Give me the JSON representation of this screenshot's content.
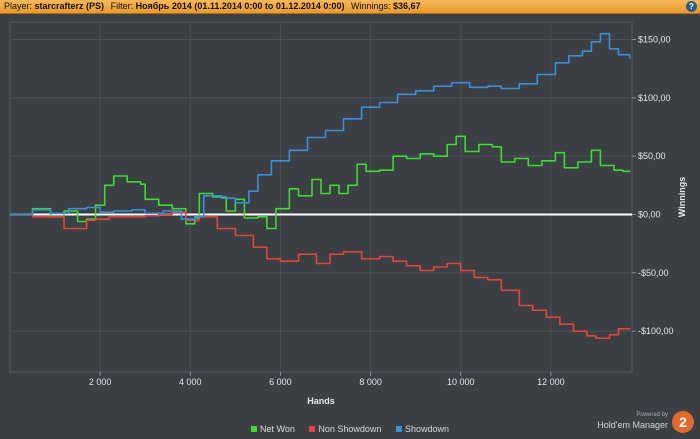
{
  "header": {
    "player_label": "Player:",
    "player": "starcrafterz (PS)",
    "filter_label": "Filter:",
    "filter": "Ноябрь 2014 (01.11.2014 0:00 to 01.12.2014 0:00)",
    "winnings_label": "Winnings:",
    "winnings": "$36,67",
    "help_icon": "?"
  },
  "brand": {
    "powered": "Powered by",
    "name": "Hold'em Manager",
    "logo": "2"
  },
  "colors": {
    "net_won": "#3ddc2e",
    "non_showdown": "#e0453e",
    "showdown": "#3a8fdc",
    "zero_line": "#ffffff",
    "plot_bg": "#3c3f44"
  },
  "chart_data": {
    "type": "line",
    "xlabel": "Hands",
    "ylabel": "Winnings",
    "xlim": [
      0,
      13800
    ],
    "ylim": [
      -135,
      165
    ],
    "x_ticks": [
      2000,
      4000,
      6000,
      8000,
      10000,
      12000
    ],
    "x_tick_labels": [
      "2 000",
      "4 000",
      "6 000",
      "8 000",
      "10 000",
      "12 000"
    ],
    "y_ticks": [
      150,
      100,
      50,
      0,
      -50,
      -100
    ],
    "y_tick_labels": [
      "$150,00",
      "$100,00",
      "$50,00",
      "$0,00",
      "-$50,00",
      "-$100,00"
    ],
    "grid": true,
    "legend_position": "bottom",
    "series": [
      {
        "name": "Net Won",
        "color": "#3ddc2e",
        "points": [
          [
            0,
            0
          ],
          [
            500,
            5
          ],
          [
            900,
            -2
          ],
          [
            1200,
            3
          ],
          [
            1500,
            -6
          ],
          [
            1700,
            -4
          ],
          [
            1900,
            8
          ],
          [
            2100,
            25
          ],
          [
            2300,
            33
          ],
          [
            2600,
            28
          ],
          [
            2900,
            26
          ],
          [
            3000,
            13
          ],
          [
            3300,
            8
          ],
          [
            3600,
            5
          ],
          [
            3900,
            -8
          ],
          [
            4100,
            -3
          ],
          [
            4200,
            18
          ],
          [
            4500,
            15
          ],
          [
            4800,
            3
          ],
          [
            5000,
            13
          ],
          [
            5200,
            -3
          ],
          [
            5500,
            -2
          ],
          [
            5700,
            -12
          ],
          [
            5900,
            5
          ],
          [
            6200,
            22
          ],
          [
            6400,
            16
          ],
          [
            6700,
            30
          ],
          [
            6900,
            18
          ],
          [
            7100,
            25
          ],
          [
            7300,
            18
          ],
          [
            7500,
            25
          ],
          [
            7700,
            43
          ],
          [
            7900,
            37
          ],
          [
            8200,
            38
          ],
          [
            8500,
            50
          ],
          [
            8800,
            48
          ],
          [
            9100,
            52
          ],
          [
            9400,
            50
          ],
          [
            9700,
            60
          ],
          [
            9900,
            67
          ],
          [
            10100,
            54
          ],
          [
            10400,
            60
          ],
          [
            10700,
            58
          ],
          [
            10900,
            45
          ],
          [
            11200,
            48
          ],
          [
            11500,
            42
          ],
          [
            11800,
            46
          ],
          [
            12100,
            53
          ],
          [
            12300,
            40
          ],
          [
            12600,
            45
          ],
          [
            12900,
            55
          ],
          [
            13100,
            42
          ],
          [
            13400,
            38
          ],
          [
            13600,
            37
          ],
          [
            13750,
            36.67
          ]
        ]
      },
      {
        "name": "Non Showdown",
        "color": "#e0453e",
        "points": [
          [
            0,
            0
          ],
          [
            500,
            -2
          ],
          [
            900,
            -2
          ],
          [
            1200,
            -12
          ],
          [
            1500,
            -12
          ],
          [
            1700,
            -5
          ],
          [
            1900,
            -4
          ],
          [
            2200,
            -2
          ],
          [
            2600,
            -2
          ],
          [
            3000,
            -1
          ],
          [
            3300,
            0
          ],
          [
            3600,
            2
          ],
          [
            3900,
            -5
          ],
          [
            4200,
            -2
          ],
          [
            4600,
            -12
          ],
          [
            5000,
            -18
          ],
          [
            5400,
            -28
          ],
          [
            5700,
            -38
          ],
          [
            6000,
            -40
          ],
          [
            6400,
            -34
          ],
          [
            6800,
            -42
          ],
          [
            7100,
            -34
          ],
          [
            7400,
            -32
          ],
          [
            7800,
            -38
          ],
          [
            8200,
            -36
          ],
          [
            8500,
            -40
          ],
          [
            8800,
            -44
          ],
          [
            9100,
            -48
          ],
          [
            9400,
            -45
          ],
          [
            9700,
            -42
          ],
          [
            10000,
            -48
          ],
          [
            10300,
            -54
          ],
          [
            10600,
            -56
          ],
          [
            10900,
            -65
          ],
          [
            11300,
            -78
          ],
          [
            11600,
            -82
          ],
          [
            11900,
            -88
          ],
          [
            12200,
            -94
          ],
          [
            12500,
            -100
          ],
          [
            12800,
            -104
          ],
          [
            13000,
            -106
          ],
          [
            13300,
            -103
          ],
          [
            13500,
            -98
          ],
          [
            13750,
            -97
          ]
        ]
      },
      {
        "name": "Showdown",
        "color": "#3a8fdc",
        "points": [
          [
            0,
            0
          ],
          [
            500,
            4
          ],
          [
            900,
            1
          ],
          [
            1300,
            5
          ],
          [
            1700,
            6
          ],
          [
            2000,
            2
          ],
          [
            2300,
            3
          ],
          [
            2700,
            4
          ],
          [
            3000,
            1
          ],
          [
            3400,
            3
          ],
          [
            3800,
            -4
          ],
          [
            4100,
            -2
          ],
          [
            4300,
            16
          ],
          [
            4700,
            14
          ],
          [
            5000,
            10
          ],
          [
            5300,
            20
          ],
          [
            5500,
            34
          ],
          [
            5800,
            46
          ],
          [
            6200,
            55
          ],
          [
            6600,
            66
          ],
          [
            7000,
            72
          ],
          [
            7400,
            82
          ],
          [
            7800,
            92
          ],
          [
            8200,
            96
          ],
          [
            8600,
            103
          ],
          [
            9000,
            106
          ],
          [
            9400,
            110
          ],
          [
            9800,
            113
          ],
          [
            10200,
            109
          ],
          [
            10600,
            110
          ],
          [
            10900,
            108
          ],
          [
            11300,
            112
          ],
          [
            11700,
            120
          ],
          [
            12100,
            130
          ],
          [
            12400,
            136
          ],
          [
            12700,
            140
          ],
          [
            12900,
            148
          ],
          [
            13100,
            155
          ],
          [
            13300,
            142
          ],
          [
            13500,
            137
          ],
          [
            13750,
            133.67
          ]
        ]
      }
    ]
  }
}
